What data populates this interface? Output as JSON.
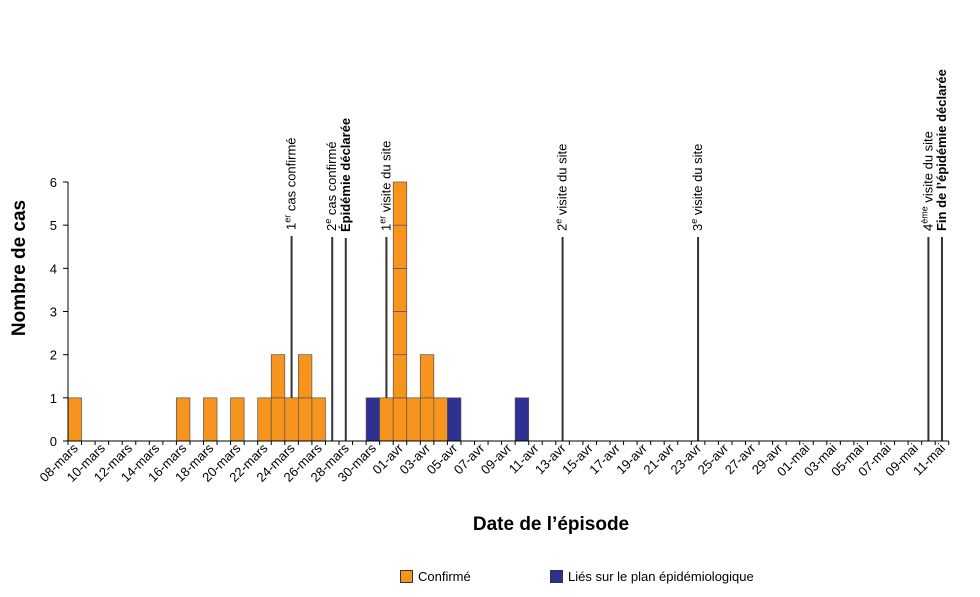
{
  "chart_data": {
    "type": "bar",
    "title": "",
    "xlabel": "Date de l’épisode",
    "ylabel": "Nombre de cas",
    "ylim": [
      0,
      6
    ],
    "yticks": [
      "0",
      "1",
      "2",
      "3",
      "4",
      "5",
      "6"
    ],
    "grid": false,
    "legend_placement": "bottom",
    "categories": [
      "08-mars",
      "09-mars",
      "10-mars",
      "11-mars",
      "12-mars",
      "13-mars",
      "14-mars",
      "15-mars",
      "16-mars",
      "17-mars",
      "18-mars",
      "19-mars",
      "20-mars",
      "21-mars",
      "22-mars",
      "23-mars",
      "24-mars",
      "25-mars",
      "26-mars",
      "27-mars",
      "28-mars",
      "29-mars",
      "30-mars",
      "31-mars",
      "01-avr",
      "02-avr",
      "03-avr",
      "04-avr",
      "05-avr",
      "06-avr",
      "07-avr",
      "08-avr",
      "09-avr",
      "10-avr",
      "11-avr",
      "12-avr",
      "13-avr",
      "14-avr",
      "15-avr",
      "16-avr",
      "17-avr",
      "18-avr",
      "19-avr",
      "20-avr",
      "21-avr",
      "22-avr",
      "23-avr",
      "24-avr",
      "25-avr",
      "26-avr",
      "27-avr",
      "28-avr",
      "29-avr",
      "30-avr",
      "01-mai",
      "02-mai",
      "03-mai",
      "04-mai",
      "05-mai",
      "06-mai",
      "07-mai",
      "08-mai",
      "09-mai",
      "10-mai",
      "11-mai"
    ],
    "tick_labels": [
      "08-mars",
      "10-mars",
      "12-mars",
      "14-mars",
      "16-mars",
      "18-mars",
      "20-mars",
      "22-mars",
      "24-mars",
      "26-mars",
      "28-mars",
      "30-mars",
      "01-avr",
      "03-avr",
      "05-avr",
      "07-avr",
      "09-avr",
      "11-avr",
      "13-avr",
      "15-avr",
      "17-avr",
      "19-avr",
      "21-avr",
      "23-avr",
      "25-avr",
      "27-avr",
      "29-avr",
      "01-mai",
      "03-mai",
      "05-mai",
      "07-mai",
      "09-mai",
      "11-mai"
    ],
    "series": [
      {
        "name": "Confirmé",
        "color": "#F7941D",
        "values": [
          1,
          0,
          0,
          0,
          0,
          0,
          0,
          0,
          1,
          0,
          1,
          0,
          1,
          0,
          1,
          2,
          1,
          2,
          1,
          0,
          0,
          0,
          0,
          1,
          6,
          1,
          2,
          1,
          0,
          0,
          0,
          0,
          0,
          0,
          0,
          0,
          0,
          0,
          0,
          0,
          0,
          0,
          0,
          0,
          0,
          0,
          0,
          0,
          0,
          0,
          0,
          0,
          0,
          0,
          0,
          0,
          0,
          0,
          0,
          0,
          0,
          0,
          0,
          0,
          0
        ]
      },
      {
        "name": "Liés sur le plan épidémiologique",
        "color": "#2E3192",
        "values": [
          0,
          0,
          0,
          0,
          0,
          0,
          0,
          0,
          0,
          0,
          0,
          0,
          0,
          0,
          0,
          0,
          0,
          0,
          0,
          0,
          0,
          0,
          1,
          0,
          0,
          0,
          0,
          0,
          1,
          0,
          0,
          0,
          0,
          1,
          0,
          0,
          0,
          0,
          0,
          0,
          0,
          0,
          0,
          0,
          0,
          0,
          0,
          0,
          0,
          0,
          0,
          0,
          0,
          0,
          0,
          0,
          0,
          0,
          0,
          0,
          0,
          0,
          0,
          0,
          0
        ]
      }
    ],
    "annotations": [
      {
        "date": "24-mars",
        "lines": [
          {
            "base": "1",
            "sup": "er",
            "rest": " cas confirmé",
            "bold": false
          }
        ]
      },
      {
        "date": "27-mars",
        "lines": [
          {
            "base": "2",
            "sup": "e",
            "rest": " cas confirmé",
            "bold": false
          }
        ]
      },
      {
        "date": "28-mars",
        "lines": [
          {
            "base": "Épidémie déclarée",
            "sup": "",
            "rest": "",
            "bold": true
          }
        ]
      },
      {
        "date": "31-mars",
        "lines": [
          {
            "base": "1",
            "sup": "er",
            "rest": " visite du site",
            "bold": false
          }
        ]
      },
      {
        "date": "13-avr",
        "lines": [
          {
            "base": "2",
            "sup": "e",
            "rest": " visite du site",
            "bold": false
          }
        ]
      },
      {
        "date": "23-avr",
        "lines": [
          {
            "base": "3",
            "sup": "e",
            "rest": " visite du site",
            "bold": false
          }
        ]
      },
      {
        "date": "10-mai",
        "lines": [
          {
            "base": "4",
            "sup": "ème",
            "rest": " visite du site",
            "bold": false
          }
        ]
      },
      {
        "date": "11-mai",
        "lines": [
          {
            "base": "Fin de l’épidémie déclarée",
            "sup": "",
            "rest": "",
            "bold": true
          }
        ]
      }
    ]
  },
  "legend": {
    "confirmed_label": "Confirmé",
    "linked_label": "Liés sur le plan épidémiologique"
  }
}
